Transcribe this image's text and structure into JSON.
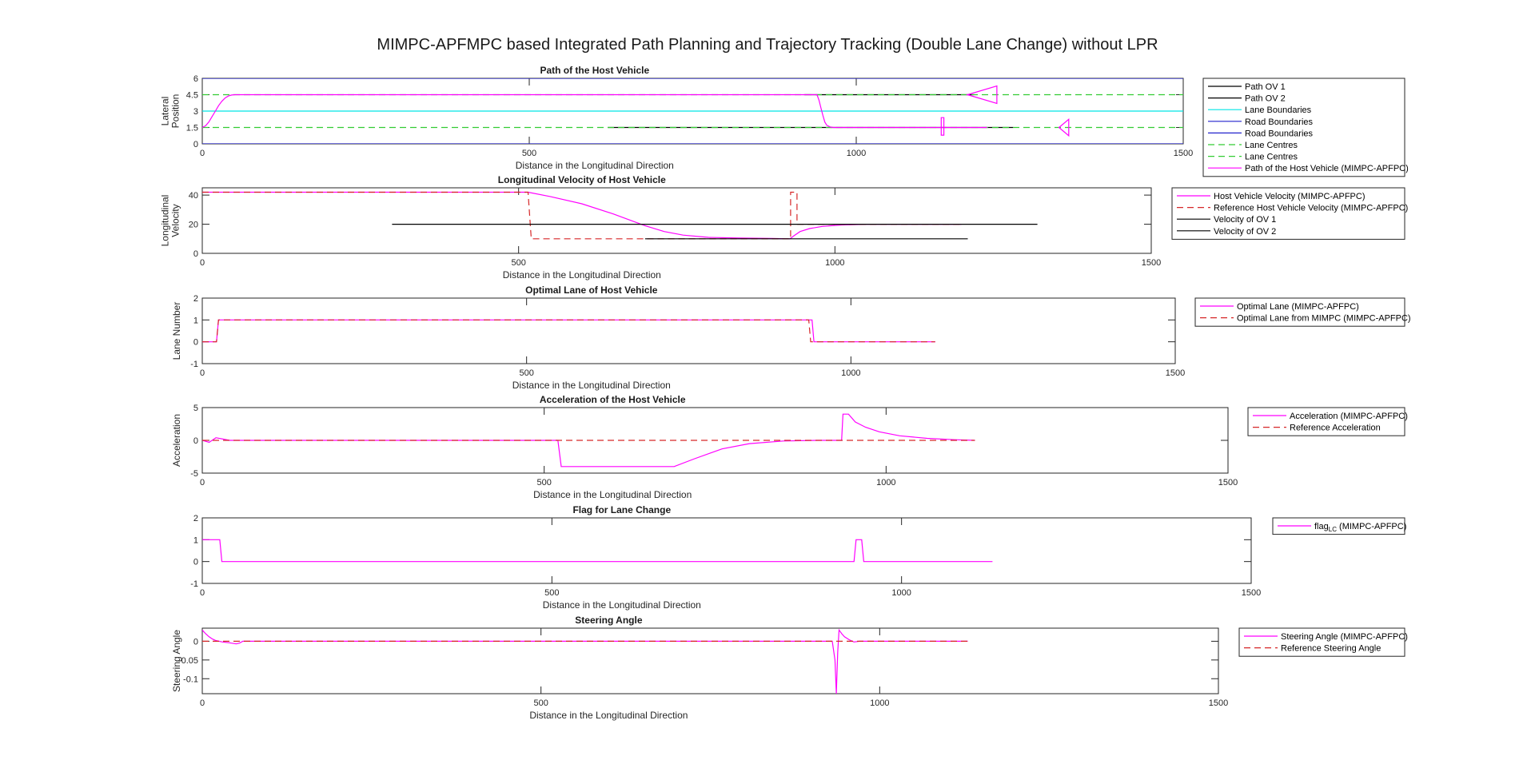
{
  "figure": {
    "title": "MIMPC-APFMPC based Integrated Path Planning and Trajectory Tracking (Double Lane Change) without LPR"
  },
  "colors": {
    "host": "#ff00ff",
    "reference": "#d62728",
    "ov": "#000000",
    "lane_boundary": "#00e5e5",
    "road_boundary": "#2222cc",
    "lane_centre": "#33cc33"
  },
  "chart_data": [
    {
      "type": "line",
      "title": "Path of the Host Vehicle",
      "xlabel": "Distance in the Longitudinal Direction",
      "ylabel": [
        "Lateral",
        "Position"
      ],
      "xlim": [
        0,
        1500
      ],
      "ylim": [
        0,
        6
      ],
      "xticks": [
        0,
        500,
        1000,
        1500
      ],
      "yticks": [
        0,
        1.5,
        3,
        4.5,
        6
      ],
      "grid": false,
      "legend_placement": "outside-right",
      "series": [
        {
          "name": "Path OV 1",
          "color": "#000000",
          "style": "solid",
          "x": [
            620,
            1240
          ],
          "y": [
            1.5,
            1.5
          ]
        },
        {
          "name": "Path OV 2",
          "color": "#000000",
          "style": "solid",
          "x": [
            920,
            1180
          ],
          "y": [
            4.5,
            4.5
          ]
        },
        {
          "name": "Lane Boundaries",
          "color": "#00e5e5",
          "style": "solid",
          "x": [
            0,
            1500
          ],
          "y": [
            3,
            3
          ]
        },
        {
          "name": "Road Boundaries",
          "color": "#2222cc",
          "style": "solid",
          "x": [
            0,
            1500
          ],
          "y": [
            0,
            0
          ]
        },
        {
          "name": "Road Boundaries",
          "color": "#2222cc",
          "style": "solid",
          "x": [
            0,
            1500
          ],
          "y": [
            6,
            6
          ]
        },
        {
          "name": "Lane Centres",
          "color": "#33cc33",
          "style": "dashed",
          "x": [
            0,
            1500
          ],
          "y": [
            1.5,
            1.5
          ]
        },
        {
          "name": "Lane Centres",
          "color": "#33cc33",
          "style": "dashed",
          "x": [
            0,
            1500
          ],
          "y": [
            4.5,
            4.5
          ]
        },
        {
          "name": "Path of the Host Vehicle (MIMPC-APFPC)",
          "color": "#ff00ff",
          "style": "solid",
          "x": [
            0,
            5,
            10,
            15,
            20,
            25,
            30,
            35,
            40,
            45,
            50,
            55,
            60,
            200,
            400,
            600,
            800,
            940,
            943,
            946,
            949,
            952,
            955,
            960,
            965,
            1200
          ],
          "y": [
            1.5,
            1.65,
            2.0,
            2.5,
            3.0,
            3.5,
            3.9,
            4.2,
            4.38,
            4.47,
            4.5,
            4.5,
            4.5,
            4.5,
            4.5,
            4.5,
            4.5,
            4.5,
            4.0,
            3.3,
            2.6,
            2.0,
            1.7,
            1.55,
            1.5,
            1.5
          ]
        }
      ],
      "annotations": [
        {
          "shape": "triangle",
          "color": "#ff00ff",
          "x": [
            1170,
            1215,
            1215
          ],
          "y": [
            4.5,
            3.7,
            5.3
          ]
        },
        {
          "shape": "triangle",
          "color": "#ff00ff",
          "x": [
            1310,
            1325,
            1325
          ],
          "y": [
            1.5,
            0.75,
            2.25
          ]
        },
        {
          "shape": "bar",
          "color": "#ff00ff",
          "x": [
            1130,
            1130,
            1134,
            1134,
            1130
          ],
          "y": [
            0.8,
            2.4,
            2.4,
            0.8,
            0.8
          ]
        }
      ]
    },
    {
      "type": "line",
      "title": "Longitudinal Velocity of Host Vehicle",
      "xlabel": "Distance in the Longitudinal Direction",
      "ylabel": [
        "Longitudinal",
        "Velocity"
      ],
      "xlim": [
        0,
        1500
      ],
      "ylim": [
        0,
        45
      ],
      "xticks": [
        0,
        500,
        1000,
        1500
      ],
      "yticks": [
        0,
        20,
        40
      ],
      "grid": false,
      "legend_placement": "outside-right",
      "series": [
        {
          "name": "Host Vehicle Velocity (MIMPC-APFPC)",
          "color": "#ff00ff",
          "style": "solid",
          "x": [
            0,
            200,
            400,
            515,
            550,
            600,
            650,
            700,
            730,
            760,
            800,
            850,
            900,
            929,
            935,
            945,
            960,
            980,
            1010,
            1050,
            1100,
            1150,
            1200
          ],
          "y": [
            42,
            42,
            42,
            42,
            39,
            34,
            27,
            19,
            15,
            12.5,
            11,
            10.5,
            10.2,
            10,
            12,
            15,
            17,
            18.5,
            19.5,
            20,
            20,
            20,
            20
          ]
        },
        {
          "name": "Reference Host Vehicle Velocity (MIMPC-APFPC)",
          "color": "#d62728",
          "style": "dashed",
          "x": [
            0,
            515,
            520,
            700,
            930,
            930,
            940,
            940,
            1200
          ],
          "y": [
            42,
            42,
            10,
            10,
            10,
            42,
            42,
            20,
            20
          ]
        },
        {
          "name": "Velocity of OV 1",
          "color": "#000000",
          "style": "solid",
          "x": [
            300,
            1320
          ],
          "y": [
            20,
            20
          ]
        },
        {
          "name": "Velocity of OV 2",
          "color": "#000000",
          "style": "solid",
          "x": [
            700,
            1210
          ],
          "y": [
            10,
            10
          ]
        }
      ]
    },
    {
      "type": "line",
      "title": "Optimal Lane of Host Vehicle",
      "xlabel": "Distance in the Longitudinal Direction",
      "ylabel": [
        "Lane Number"
      ],
      "xlim": [
        0,
        1500
      ],
      "ylim": [
        -1,
        2
      ],
      "xticks": [
        0,
        500,
        1000,
        1500
      ],
      "yticks": [
        -1,
        0,
        1,
        2
      ],
      "grid": false,
      "legend_placement": "outside-right",
      "series": [
        {
          "name": "Optimal Lane (MIMPC-APFPC)",
          "color": "#ff00ff",
          "style": "solid",
          "x": [
            0,
            22,
            25,
            940,
            943,
            1130
          ],
          "y": [
            0,
            0,
            1,
            1,
            0,
            0
          ]
        },
        {
          "name": "Optimal Lane from MIMPC (MIMPC-APFPC)",
          "color": "#d62728",
          "style": "dashed",
          "x": [
            0,
            22,
            25,
            935,
            938,
            1130
          ],
          "y": [
            0,
            0,
            1,
            1,
            0,
            0
          ]
        }
      ]
    },
    {
      "type": "line",
      "title": "Acceleration of the Host Vehicle",
      "xlabel": "Distance in the Longitudinal Direction",
      "ylabel": [
        "Acceleration"
      ],
      "xlim": [
        0,
        1500
      ],
      "ylim": [
        -5,
        5
      ],
      "xticks": [
        0,
        500,
        1000,
        1500
      ],
      "yticks": [
        -5,
        0,
        5
      ],
      "grid": false,
      "legend_placement": "outside-right",
      "series": [
        {
          "name": "Acceleration (MIMPC-APFPC)",
          "color": "#ff00ff",
          "style": "solid",
          "x": [
            0,
            10,
            20,
            30,
            40,
            60,
            400,
            520,
            525,
            690,
            720,
            760,
            800,
            850,
            900,
            935,
            937,
            945,
            955,
            970,
            990,
            1020,
            1060,
            1100,
            1130
          ],
          "y": [
            0,
            -0.3,
            0.4,
            0.2,
            0,
            0,
            0,
            0,
            -4,
            -4,
            -2.8,
            -1.3,
            -0.5,
            -0.1,
            0,
            0,
            4,
            4,
            2.8,
            2.0,
            1.3,
            0.7,
            0.3,
            0.1,
            0
          ]
        },
        {
          "name": "Reference Acceleration",
          "color": "#d62728",
          "style": "dashed",
          "x": [
            0,
            1130
          ],
          "y": [
            0,
            0
          ]
        }
      ]
    },
    {
      "type": "line",
      "title": "Flag for Lane Change",
      "xlabel": "Distance in the Longitudinal Direction",
      "ylabel": [],
      "xlim": [
        0,
        1500
      ],
      "ylim": [
        -1,
        2
      ],
      "xticks": [
        0,
        500,
        1000,
        1500
      ],
      "yticks": [
        -1,
        0,
        1,
        2
      ],
      "grid": false,
      "legend_placement": "outside-right",
      "series": [
        {
          "name": "flag",
          "subscript": "LC",
          "suffix": " (MIMPC-APFPC)",
          "color": "#ff00ff",
          "style": "solid",
          "x": [
            0,
            25,
            28,
            932,
            935,
            943,
            946,
            1130
          ],
          "y": [
            1,
            1,
            0,
            0,
            1,
            1,
            0,
            0
          ]
        }
      ]
    },
    {
      "type": "line",
      "title": "Steering Angle",
      "xlabel": "Distance in the Longitudinal Direction",
      "ylabel": [
        "Steering Angle"
      ],
      "xlim": [
        0,
        1500
      ],
      "ylim": [
        -0.14,
        0.035
      ],
      "xticks": [
        0,
        500,
        1000,
        1500
      ],
      "yticks": [
        -0.1,
        -0.05,
        0
      ],
      "grid": false,
      "legend_placement": "outside-right",
      "series": [
        {
          "name": "Steering Angle (MIMPC-APFPC)",
          "color": "#ff00ff",
          "style": "solid",
          "x": [
            0,
            5,
            10,
            15,
            20,
            30,
            40,
            50,
            55,
            60,
            80,
            930,
            934,
            936,
            938,
            940,
            944,
            948,
            955,
            962,
            970,
            1130
          ],
          "y": [
            0.03,
            0.02,
            0.012,
            0.006,
            0.002,
            -0.002,
            -0.004,
            -0.007,
            -0.005,
            0,
            0,
            0,
            -0.05,
            -0.14,
            -0.03,
            0.03,
            0.02,
            0.012,
            0.004,
            -0.002,
            0,
            0
          ]
        },
        {
          "name": "Reference Steering Angle",
          "color": "#d62728",
          "style": "dashed",
          "x": [
            0,
            1130
          ],
          "y": [
            0,
            0
          ]
        }
      ]
    }
  ]
}
